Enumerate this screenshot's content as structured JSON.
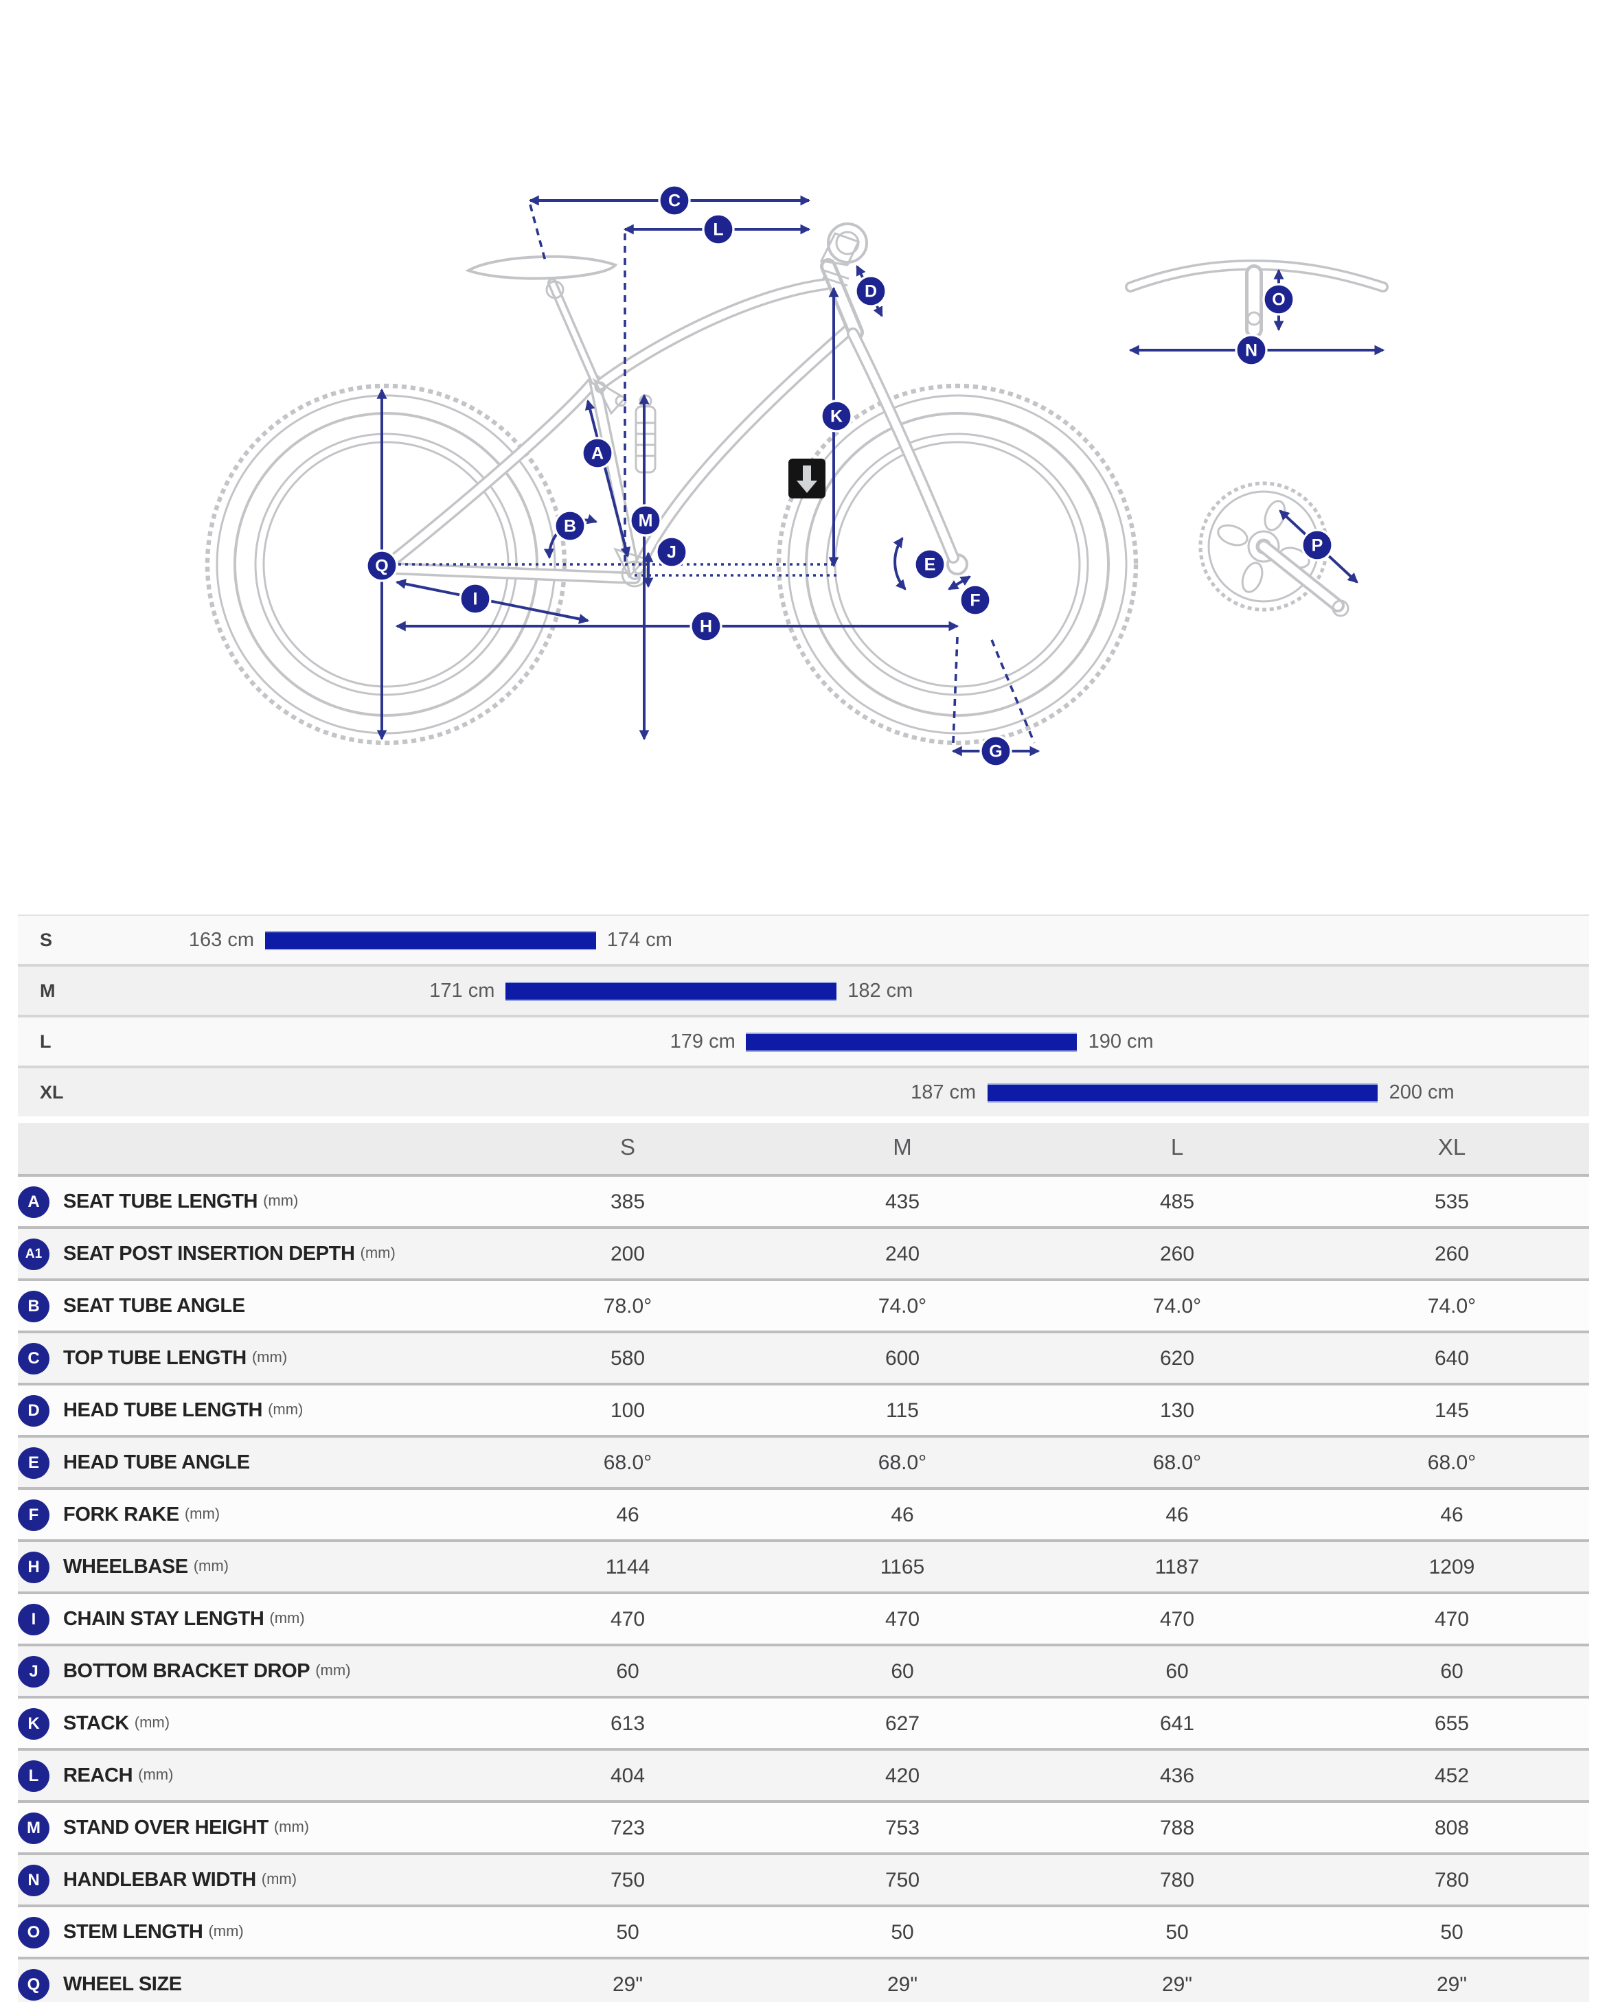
{
  "diagram": {
    "labels": {
      "A": "A",
      "B": "B",
      "C": "C",
      "D": "D",
      "E": "E",
      "F": "F",
      "G": "G",
      "H": "H",
      "I": "I",
      "J": "J",
      "K": "K",
      "L": "L",
      "M": "M",
      "N": "N",
      "O": "O",
      "P": "P",
      "Q": "Q"
    }
  },
  "size_guide": {
    "scale": {
      "min_cm": 163,
      "max_cm": 200
    },
    "bar_color": "#0d1ba6",
    "rows": [
      {
        "size": "S",
        "from_cm": 163,
        "to_cm": 174,
        "from_label": "163 cm",
        "to_label": "174 cm"
      },
      {
        "size": "M",
        "from_cm": 171,
        "to_cm": 182,
        "from_label": "171 cm",
        "to_label": "182 cm"
      },
      {
        "size": "L",
        "from_cm": 179,
        "to_cm": 190,
        "from_label": "179 cm",
        "to_label": "190 cm"
      },
      {
        "size": "XL",
        "from_cm": 187,
        "to_cm": 200,
        "from_label": "187 cm",
        "to_label": "200 cm"
      }
    ]
  },
  "table": {
    "columns": [
      "S",
      "M",
      "L",
      "XL"
    ],
    "rows": [
      {
        "key": "A",
        "label": "SEAT TUBE LENGTH",
        "unit": "(mm)",
        "values": [
          "385",
          "435",
          "485",
          "535"
        ]
      },
      {
        "key": "A1",
        "label": "SEAT POST INSERTION DEPTH",
        "unit": "(mm)",
        "values": [
          "200",
          "240",
          "260",
          "260"
        ]
      },
      {
        "key": "B",
        "label": "SEAT TUBE ANGLE",
        "unit": "",
        "values": [
          "78.0°",
          "74.0°",
          "74.0°",
          "74.0°"
        ]
      },
      {
        "key": "C",
        "label": "TOP TUBE LENGTH",
        "unit": "(mm)",
        "values": [
          "580",
          "600",
          "620",
          "640"
        ]
      },
      {
        "key": "D",
        "label": "HEAD TUBE LENGTH",
        "unit": "(mm)",
        "values": [
          "100",
          "115",
          "130",
          "145"
        ]
      },
      {
        "key": "E",
        "label": "HEAD TUBE ANGLE",
        "unit": "",
        "values": [
          "68.0°",
          "68.0°",
          "68.0°",
          "68.0°"
        ]
      },
      {
        "key": "F",
        "label": "FORK RAKE",
        "unit": "(mm)",
        "values": [
          "46",
          "46",
          "46",
          "46"
        ]
      },
      {
        "key": "H",
        "label": "WHEELBASE",
        "unit": "(mm)",
        "values": [
          "1144",
          "1165",
          "1187",
          "1209"
        ]
      },
      {
        "key": "I",
        "label": "CHAIN STAY LENGTH",
        "unit": "(mm)",
        "values": [
          "470",
          "470",
          "470",
          "470"
        ]
      },
      {
        "key": "J",
        "label": "BOTTOM BRACKET DROP",
        "unit": "(mm)",
        "values": [
          "60",
          "60",
          "60",
          "60"
        ]
      },
      {
        "key": "K",
        "label": "STACK",
        "unit": "(mm)",
        "values": [
          "613",
          "627",
          "641",
          "655"
        ]
      },
      {
        "key": "L",
        "label": "REACH",
        "unit": "(mm)",
        "values": [
          "404",
          "420",
          "436",
          "452"
        ]
      },
      {
        "key": "M",
        "label": "STAND OVER HEIGHT",
        "unit": "(mm)",
        "values": [
          "723",
          "753",
          "788",
          "808"
        ]
      },
      {
        "key": "N",
        "label": "HANDLEBAR WIDTH",
        "unit": "(mm)",
        "values": [
          "750",
          "750",
          "780",
          "780"
        ]
      },
      {
        "key": "O",
        "label": "STEM LENGTH",
        "unit": "(mm)",
        "values": [
          "50",
          "50",
          "50",
          "50"
        ]
      },
      {
        "key": "Q",
        "label": "WHEEL SIZE",
        "unit": "",
        "values": [
          "29\"",
          "29\"",
          "29\"",
          "29\""
        ]
      }
    ]
  },
  "colors": {
    "accent_blue": "#0d1ba6",
    "navy": "#2b3590",
    "badge_navy": "#1d2490"
  }
}
